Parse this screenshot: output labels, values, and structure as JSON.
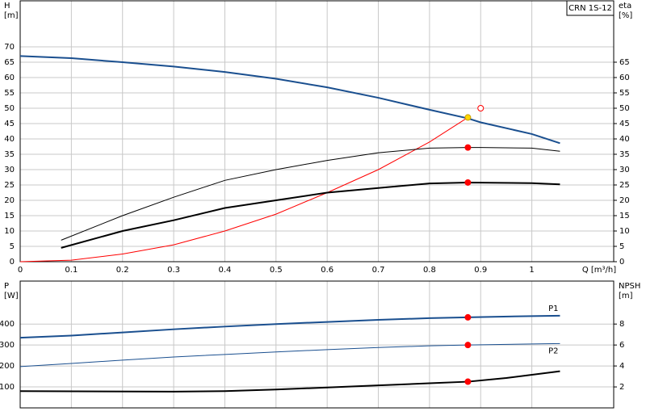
{
  "chart_data": [
    {
      "type": "line",
      "label": "CRN 1S-12",
      "y_label": [
        "H",
        "[m]"
      ],
      "y2_label": [
        "eta",
        "[%]"
      ],
      "x_label": "Q [m³/h]",
      "xlim": [
        0,
        1.16
      ],
      "xticks": [
        0,
        0.1,
        0.2,
        0.3,
        0.4,
        0.5,
        0.6,
        0.7,
        0.8,
        0.9,
        1.0
      ],
      "ylim": [
        0,
        85
      ],
      "yticks": [
        0,
        5,
        10,
        15,
        20,
        25,
        30,
        35,
        40,
        45,
        50,
        55,
        60,
        65,
        70
      ],
      "y2lim": [
        0,
        85
      ],
      "y2ticks": [
        0,
        5,
        10,
        15,
        20,
        25,
        30,
        35,
        40,
        45,
        50,
        55,
        60,
        65
      ],
      "grid": true,
      "series": [
        {
          "color": "#1a4f8f",
          "weight": "heavy",
          "x": [
            0,
            0.1,
            0.2,
            0.3,
            0.4,
            0.5,
            0.6,
            0.7,
            0.8,
            0.875,
            0.9,
            1.0,
            1.055
          ],
          "values": [
            67,
            66.3,
            65,
            63.6,
            61.8,
            59.6,
            56.8,
            53.4,
            49.5,
            46.7,
            45.4,
            41.6,
            38.6
          ]
        },
        {
          "color": "#ff0000",
          "weight": "light",
          "axis": "y2",
          "x": [
            0,
            0.1,
            0.2,
            0.3,
            0.4,
            0.5,
            0.6,
            0.7,
            0.8,
            0.875
          ],
          "values": [
            0,
            0.5,
            2.5,
            5.5,
            10,
            15.5,
            22.5,
            30,
            39,
            47
          ]
        },
        {
          "color": "#000000",
          "weight": "light",
          "axis": "y2",
          "x": [
            0.08,
            0.2,
            0.3,
            0.4,
            0.5,
            0.6,
            0.7,
            0.8,
            0.875,
            0.9,
            1.0,
            1.055
          ],
          "values": [
            7,
            15,
            21,
            26.5,
            30,
            33,
            35.5,
            37,
            37.2,
            37.2,
            37,
            36
          ]
        },
        {
          "color": "#000000",
          "weight": "heavy",
          "axis": "y2",
          "x": [
            0.08,
            0.2,
            0.3,
            0.4,
            0.5,
            0.6,
            0.7,
            0.8,
            0.875,
            1.0,
            1.055
          ],
          "values": [
            4.5,
            10,
            13.5,
            17.5,
            20,
            22.5,
            24,
            25.5,
            25.8,
            25.6,
            25.2
          ]
        }
      ],
      "markers": [
        {
          "x": 0.875,
          "y": 47,
          "color": "#ffd700"
        },
        {
          "x": 0.875,
          "y": 37.2,
          "color": "#ff0000",
          "axis": "y2"
        },
        {
          "x": 0.875,
          "y": 25.8,
          "color": "#ff0000",
          "axis": "y2"
        },
        {
          "x": 0.9,
          "y": 50,
          "color": "#ff0000",
          "style": "open"
        }
      ]
    },
    {
      "type": "line",
      "y_label": [
        "P",
        "[W]"
      ],
      "y2_label": [
        "NPSH",
        "[m]"
      ],
      "xlim": [
        0,
        1.16
      ],
      "xticks": [
        0,
        0.1,
        0.2,
        0.3,
        0.4,
        0.5,
        0.6,
        0.7,
        0.8,
        0.9,
        1.0
      ],
      "ylim": [
        0,
        605
      ],
      "yticks": [
        100,
        200,
        300,
        400
      ],
      "y2lim": [
        0,
        12.1
      ],
      "y2ticks": [
        2,
        4,
        6,
        8
      ],
      "grid": true,
      "series": [
        {
          "name": "P1",
          "color": "#1a4f8f",
          "weight": "heavy",
          "x": [
            0,
            0.1,
            0.2,
            0.3,
            0.4,
            0.5,
            0.6,
            0.7,
            0.8,
            0.875,
            1.0,
            1.055
          ],
          "values": [
            335,
            345,
            360,
            375,
            388,
            400,
            410,
            420,
            428,
            432,
            438,
            440
          ]
        },
        {
          "name": "P2",
          "color": "#1a4f8f",
          "weight": "light",
          "x": [
            0,
            0.1,
            0.2,
            0.3,
            0.4,
            0.5,
            0.6,
            0.7,
            0.8,
            0.875,
            1.0,
            1.055
          ],
          "values": [
            197,
            212,
            228,
            243,
            255,
            267,
            278,
            288,
            296,
            300,
            305,
            307
          ]
        },
        {
          "color": "#000000",
          "weight": "heavy",
          "axis": "y2",
          "x": [
            0,
            0.3,
            0.4,
            0.5,
            0.6,
            0.7,
            0.8,
            0.875,
            0.95,
            1.055
          ],
          "values": [
            1.6,
            1.55,
            1.6,
            1.75,
            1.95,
            2.15,
            2.35,
            2.5,
            2.85,
            3.5
          ]
        }
      ],
      "markers": [
        {
          "x": 0.875,
          "y": 432,
          "color": "#ff0000"
        },
        {
          "x": 0.875,
          "y": 300,
          "color": "#ff0000"
        },
        {
          "x": 0.875,
          "y": 2.5,
          "color": "#ff0000",
          "axis": "y2"
        }
      ]
    }
  ]
}
